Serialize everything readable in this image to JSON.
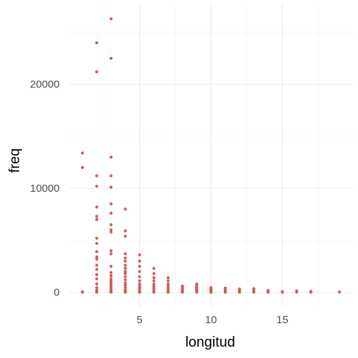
{
  "chart_data": {
    "type": "scatter",
    "title": "",
    "xlabel": "longitud",
    "ylabel": "freq",
    "xlim": [
      0.1,
      19.9
    ],
    "ylim": [
      -1400,
      27700
    ],
    "x_ticks": [
      5,
      10,
      15
    ],
    "x_tick_labels": [
      "5",
      "10",
      "15"
    ],
    "x_minor_ticks": [
      2.5,
      7.5,
      12.5,
      17.5
    ],
    "y_ticks": [
      0,
      10000,
      20000
    ],
    "y_tick_labels": [
      "0",
      "10000",
      "20000"
    ],
    "y_minor_ticks": [
      5000,
      15000,
      25000
    ],
    "grid": true,
    "legend": "none",
    "point_color": "#CD5C5C",
    "background": "#FFFFFF",
    "series": [
      {
        "points": [
          [
            1,
            13400
          ],
          [
            1,
            12000
          ],
          [
            1,
            50
          ],
          [
            1,
            20
          ],
          [
            1,
            5
          ],
          [
            2,
            24000
          ],
          [
            2,
            21200
          ],
          [
            2,
            11200
          ],
          [
            2,
            10200
          ],
          [
            2,
            8200
          ],
          [
            2,
            7300
          ],
          [
            2,
            7000
          ],
          [
            2,
            5200
          ],
          [
            2,
            4700
          ],
          [
            2,
            3900
          ],
          [
            2,
            3400
          ],
          [
            2,
            3200
          ],
          [
            2,
            2600
          ],
          [
            2,
            2200
          ],
          [
            2,
            1700
          ],
          [
            2,
            1300
          ],
          [
            2,
            800
          ],
          [
            2,
            450
          ],
          [
            2,
            200
          ],
          [
            2,
            50
          ],
          [
            2,
            10
          ],
          [
            3,
            26300
          ],
          [
            3,
            22500
          ],
          [
            3,
            13000
          ],
          [
            3,
            11200
          ],
          [
            3,
            10100
          ],
          [
            3,
            8500
          ],
          [
            3,
            7600
          ],
          [
            3,
            6500
          ],
          [
            3,
            6000
          ],
          [
            3,
            5800
          ],
          [
            3,
            4000
          ],
          [
            3,
            3700
          ],
          [
            3,
            2500
          ],
          [
            3,
            1900
          ],
          [
            3,
            1600
          ],
          [
            3,
            1300
          ],
          [
            3,
            1100
          ],
          [
            3,
            900
          ],
          [
            3,
            700
          ],
          [
            3,
            500
          ],
          [
            3,
            350
          ],
          [
            3,
            200
          ],
          [
            3,
            100
          ],
          [
            3,
            30
          ],
          [
            3,
            5
          ],
          [
            4,
            8000
          ],
          [
            4,
            5900
          ],
          [
            4,
            5400
          ],
          [
            4,
            3700
          ],
          [
            4,
            3300
          ],
          [
            4,
            3000
          ],
          [
            4,
            2600
          ],
          [
            4,
            2300
          ],
          [
            4,
            2000
          ],
          [
            4,
            1800
          ],
          [
            4,
            1500
          ],
          [
            4,
            1200
          ],
          [
            4,
            900
          ],
          [
            4,
            700
          ],
          [
            4,
            500
          ],
          [
            4,
            300
          ],
          [
            4,
            150
          ],
          [
            4,
            50
          ],
          [
            4,
            10
          ],
          [
            5,
            3600
          ],
          [
            5,
            3000
          ],
          [
            5,
            2500
          ],
          [
            5,
            2000
          ],
          [
            5,
            1500
          ],
          [
            5,
            1100
          ],
          [
            5,
            800
          ],
          [
            5,
            600
          ],
          [
            5,
            400
          ],
          [
            5,
            200
          ],
          [
            5,
            80
          ],
          [
            5,
            10
          ],
          [
            6,
            2300
          ],
          [
            6,
            1800
          ],
          [
            6,
            1400
          ],
          [
            6,
            1100
          ],
          [
            6,
            800
          ],
          [
            6,
            600
          ],
          [
            6,
            400
          ],
          [
            6,
            200
          ],
          [
            6,
            80
          ],
          [
            6,
            10
          ],
          [
            7,
            1400
          ],
          [
            7,
            1100
          ],
          [
            7,
            800
          ],
          [
            7,
            600
          ],
          [
            7,
            400
          ],
          [
            7,
            250
          ],
          [
            7,
            120
          ],
          [
            7,
            40
          ],
          [
            7,
            5
          ],
          [
            8,
            600
          ],
          [
            8,
            450
          ],
          [
            8,
            300
          ],
          [
            8,
            180
          ],
          [
            8,
            80
          ],
          [
            8,
            10
          ],
          [
            9,
            800
          ],
          [
            9,
            600
          ],
          [
            9,
            450
          ],
          [
            9,
            300
          ],
          [
            9,
            180
          ],
          [
            9,
            80
          ],
          [
            9,
            10
          ],
          [
            10,
            450
          ],
          [
            10,
            320
          ],
          [
            10,
            200
          ],
          [
            10,
            100
          ],
          [
            10,
            10
          ],
          [
            11,
            400
          ],
          [
            11,
            250
          ],
          [
            11,
            120
          ],
          [
            11,
            10
          ],
          [
            12,
            320
          ],
          [
            12,
            200
          ],
          [
            12,
            100
          ],
          [
            12,
            10
          ],
          [
            13,
            350
          ],
          [
            13,
            220
          ],
          [
            13,
            100
          ],
          [
            13,
            10
          ],
          [
            14,
            180
          ],
          [
            14,
            80
          ],
          [
            14,
            10
          ],
          [
            15,
            70
          ],
          [
            15,
            10
          ],
          [
            16,
            130
          ],
          [
            16,
            10
          ],
          [
            17,
            90
          ],
          [
            17,
            10
          ],
          [
            19,
            30
          ]
        ]
      }
    ]
  }
}
